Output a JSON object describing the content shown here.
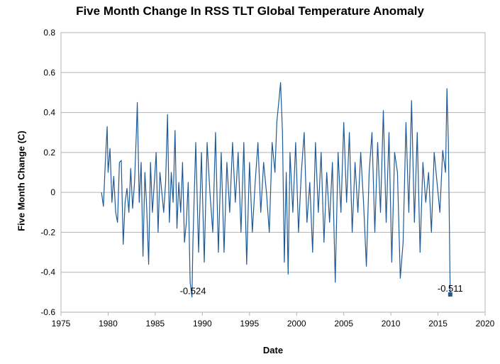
{
  "chart_data": {
    "type": "line",
    "title": "Five Month Change In RSS TLT Global Temperature Anomaly",
    "xlabel": "Date",
    "ylabel": "Five Month Change (C)",
    "xlim": [
      1975,
      2020
    ],
    "ylim": [
      -0.6,
      0.8
    ],
    "xticks": [
      1975,
      1980,
      1985,
      1990,
      1995,
      2000,
      2005,
      2010,
      2015,
      2020
    ],
    "yticks": [
      -0.6,
      -0.4,
      -0.2,
      0,
      0.2,
      0.4,
      0.6,
      0.8
    ],
    "grid": true,
    "legend": "none",
    "color": "#1f5a96",
    "annotations": [
      {
        "text": "-0.524",
        "x": 1989.0,
        "y": -0.524
      },
      {
        "text": "-0.511",
        "x": 2016.3,
        "y": -0.511
      }
    ],
    "series": [
      {
        "x": [
          1979.3,
          1979.5,
          1979.7,
          1979.9,
          1980.0,
          1980.2,
          1980.4,
          1980.6,
          1980.8,
          1981.0,
          1981.2,
          1981.4,
          1981.6,
          1981.8,
          1982.0,
          1982.2,
          1982.4,
          1982.6,
          1982.8,
          1983.0,
          1983.1,
          1983.3,
          1983.5,
          1983.7,
          1983.9,
          1984.1,
          1984.3,
          1984.5,
          1984.7,
          1984.9,
          1985.1,
          1985.3,
          1985.5,
          1985.7,
          1985.9,
          1986.1,
          1986.3,
          1986.5,
          1986.7,
          1986.9,
          1987.1,
          1987.3,
          1987.5,
          1987.7,
          1987.9,
          1988.1,
          1988.3,
          1988.5,
          1988.7,
          1988.9,
          1989.0,
          1989.3,
          1989.6,
          1989.9,
          1990.2,
          1990.5,
          1990.8,
          1991.1,
          1991.4,
          1991.7,
          1992.0,
          1992.3,
          1992.6,
          1992.9,
          1993.2,
          1993.5,
          1993.8,
          1994.1,
          1994.4,
          1994.7,
          1995.0,
          1995.3,
          1995.6,
          1995.9,
          1996.2,
          1996.5,
          1996.8,
          1997.1,
          1997.4,
          1997.7,
          1997.9,
          1998.1,
          1998.3,
          1998.5,
          1998.7,
          1998.9,
          1999.1,
          1999.3,
          1999.6,
          1999.9,
          2000.2,
          2000.5,
          2000.8,
          2001.1,
          2001.4,
          2001.7,
          2002.0,
          2002.3,
          2002.6,
          2002.9,
          2003.2,
          2003.5,
          2003.8,
          2004.1,
          2004.4,
          2004.7,
          2005.0,
          2005.3,
          2005.6,
          2005.9,
          2006.2,
          2006.5,
          2006.8,
          2007.1,
          2007.4,
          2007.7,
          2008.0,
          2008.3,
          2008.6,
          2008.9,
          2009.2,
          2009.5,
          2009.8,
          2010.1,
          2010.4,
          2010.7,
          2011.0,
          2011.3,
          2011.6,
          2011.9,
          2012.2,
          2012.5,
          2012.8,
          2013.1,
          2013.4,
          2013.7,
          2014.0,
          2014.3,
          2014.6,
          2014.9,
          2015.2,
          2015.5,
          2015.8,
          2015.95,
          2016.1,
          2016.3
        ],
        "y": [
          0.0,
          -0.07,
          0.15,
          0.33,
          0.1,
          0.22,
          -0.05,
          0.08,
          -0.1,
          -0.15,
          0.15,
          0.16,
          -0.26,
          -0.05,
          0.02,
          -0.1,
          0.12,
          -0.08,
          0.05,
          0.3,
          0.45,
          -0.05,
          0.15,
          -0.32,
          0.1,
          -0.08,
          -0.36,
          0.15,
          -0.1,
          0.05,
          0.2,
          -0.2,
          0.1,
          0.0,
          -0.1,
          0.05,
          0.39,
          -0.15,
          0.1,
          -0.05,
          0.31,
          -0.18,
          0.05,
          -0.1,
          0.15,
          -0.25,
          -0.15,
          0.05,
          -0.45,
          -0.524,
          -0.25,
          0.25,
          -0.3,
          0.2,
          -0.35,
          0.25,
          0.0,
          -0.2,
          0.3,
          -0.3,
          0.2,
          -0.3,
          0.15,
          -0.1,
          0.25,
          -0.05,
          0.2,
          -0.2,
          0.25,
          -0.36,
          0.15,
          -0.2,
          0.05,
          0.25,
          -0.1,
          0.15,
          0.0,
          -0.2,
          0.25,
          0.1,
          0.35,
          0.45,
          0.55,
          0.3,
          -0.35,
          0.1,
          -0.41,
          0.2,
          -0.1,
          0.25,
          -0.2,
          0.1,
          0.3,
          -0.15,
          0.05,
          -0.3,
          0.25,
          -0.1,
          0.2,
          -0.25,
          0.1,
          -0.15,
          0.15,
          -0.45,
          0.2,
          -0.1,
          0.35,
          -0.05,
          0.3,
          -0.2,
          0.15,
          -0.1,
          0.2,
          -0.05,
          -0.37,
          0.1,
          0.3,
          -0.2,
          0.25,
          -0.1,
          0.41,
          -0.15,
          0.3,
          -0.35,
          0.2,
          0.1,
          -0.43,
          -0.25,
          0.35,
          -0.1,
          0.46,
          -0.15,
          0.3,
          -0.3,
          0.15,
          -0.05,
          0.1,
          -0.2,
          0.2,
          0.05,
          -0.1,
          0.21,
          0.1,
          0.52,
          0.25,
          -0.511
        ]
      }
    ]
  }
}
